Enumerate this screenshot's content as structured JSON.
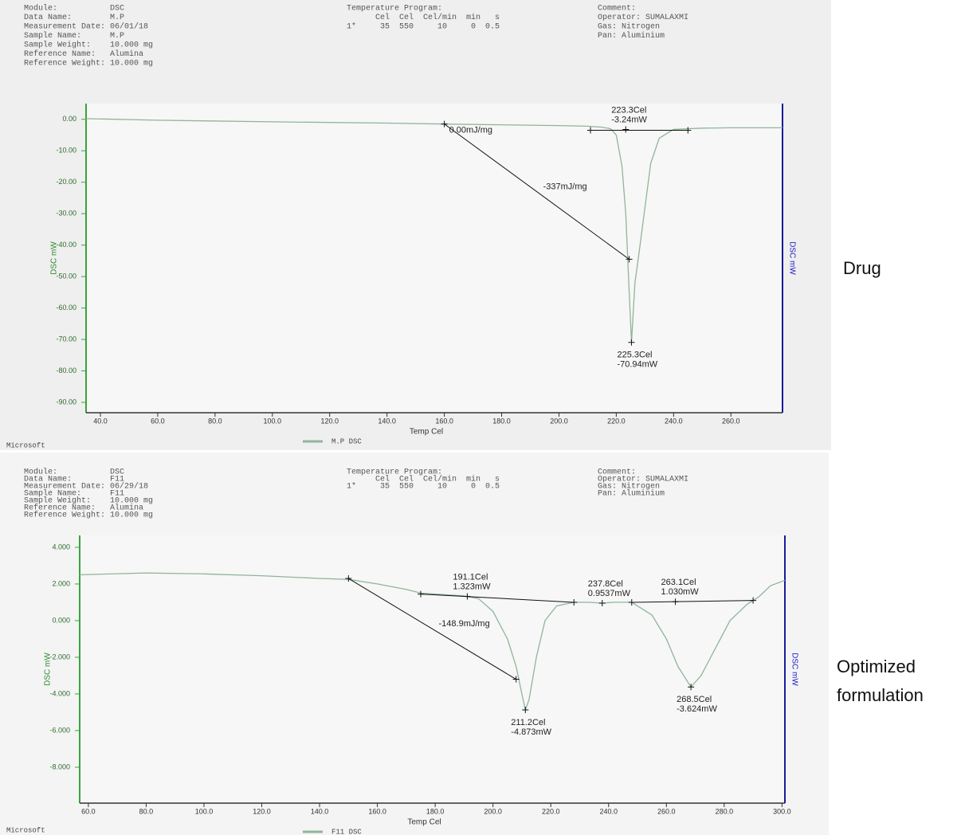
{
  "chart_data": [
    {
      "type": "line",
      "header_left": [
        "Module:           DSC",
        "Data Name:        M.P",
        "Measurement Date: 06/01/18",
        "Sample Name:      M.P",
        "Sample Weight:    10.000 mg",
        "Reference Name:   Alumina",
        "Reference Weight: 10.000 mg"
      ],
      "header_mid": [
        "Temperature Program:",
        "      Cel  Cel  Cel/min  min   s",
        "1*     35  550     10     0  0.5"
      ],
      "header_right": [
        "Comment:",
        "Operator: SUMALAXMI",
        "Gas: Nitrogen",
        "Pan: Aluminium"
      ],
      "ylabel": "DSC mW",
      "y2label": "DSC mW",
      "xlabel": "Temp Cel",
      "footer": "Microsoft",
      "side_label": [
        "Drug"
      ],
      "x": [
        35,
        60,
        100,
        140,
        160,
        200,
        210,
        215,
        218,
        220,
        222,
        223.3,
        224.5,
        225.3,
        226.5,
        228,
        230,
        232,
        235,
        240,
        250,
        260,
        278
      ],
      "series": [
        {
          "name": "M.P DSC",
          "color": "#8fb59a",
          "values": [
            0.2,
            -0.3,
            -0.8,
            -1.2,
            -1.5,
            -2.0,
            -2.2,
            -2.5,
            -3.0,
            -5,
            -15,
            -30,
            -55,
            -70.94,
            -52,
            -42,
            -28,
            -14,
            -6,
            -3.2,
            -2.8,
            -2.7,
            -2.7
          ]
        }
      ],
      "lines": [
        {
          "x": [
            211,
            245
          ],
          "values": [
            -3.5,
            -3.5
          ]
        },
        {
          "x": [
            160,
            224.5
          ],
          "values": [
            -1.5,
            -44.5
          ],
          "labels": [
            "0.00mJ/mg",
            "-337mJ/mg"
          ]
        }
      ],
      "points": [
        {
          "x": 223.3,
          "y": -3.24,
          "labels": [
            "223.3Cel",
            "-3.24mW"
          ]
        },
        {
          "x": 225.3,
          "y": -70.94,
          "labels": [
            "225.3Cel",
            "-70.94mW"
          ]
        }
      ],
      "xlim": [
        35,
        278
      ],
      "ylim": [
        5,
        -93.3
      ],
      "xticks": [
        {
          "value": 40,
          "label": "40.0"
        },
        {
          "value": 60,
          "label": "60.0"
        },
        {
          "value": 80,
          "label": "80.0"
        },
        {
          "value": 100,
          "label": "100.0"
        },
        {
          "value": 120,
          "label": "120.0"
        },
        {
          "value": 140,
          "label": "140.0"
        },
        {
          "value": 160,
          "label": "160.0"
        },
        {
          "value": 180,
          "label": "180.0"
        },
        {
          "value": 200,
          "label": "200.0"
        },
        {
          "value": 220,
          "label": "220.0"
        },
        {
          "value": 240,
          "label": "240.0"
        },
        {
          "value": 260,
          "label": "260.0"
        }
      ],
      "yticks": [
        {
          "value": 0,
          "label": "0.00"
        },
        {
          "value": -10,
          "label": "-10.00"
        },
        {
          "value": -20,
          "label": "-20.00"
        },
        {
          "value": -30,
          "label": "-30.00"
        },
        {
          "value": -40,
          "label": "-40.00"
        },
        {
          "value": -50,
          "label": "-50.00"
        },
        {
          "value": -60,
          "label": "-60.00"
        },
        {
          "value": -70,
          "label": "-70.00"
        },
        {
          "value": -80,
          "label": "-80.00"
        },
        {
          "value": -90,
          "label": "-90.00"
        }
      ]
    },
    {
      "type": "line",
      "header_left": [
        "Module:           DSC",
        "Data Name:        F11",
        "Measurement Date: 06/29/18",
        "Sample Name:      F11",
        "Sample Weight:    10.000 mg",
        "Reference Name:   Alumina",
        "Reference Weight: 10.000 mg"
      ],
      "header_mid": [
        "Temperature Program:",
        "      Cel  Cel  Cel/min  min   s",
        "1*     35  550     10     0  0.5"
      ],
      "header_right": [
        "Comment:",
        "Operator: SUMALAXMI",
        "Gas: Nitrogen",
        "Pan: Aluminium"
      ],
      "ylabel": "DSC mW",
      "y2label": "DSC mW",
      "xlabel": "Temp Cel",
      "footer": "Microsoft",
      "side_label": [
        "Optimized",
        "formulation"
      ],
      "x": [
        57,
        80,
        100,
        120,
        140,
        150,
        160,
        170,
        175,
        180,
        190,
        195,
        200,
        205,
        208,
        210,
        211.2,
        212.5,
        215,
        218,
        222,
        228,
        233,
        237.8,
        242,
        248,
        255,
        260,
        264,
        268.5,
        272,
        276,
        282,
        288,
        292,
        296,
        301
      ],
      "series": [
        {
          "name": "F11 DSC",
          "color": "#8fb59a",
          "values": [
            2.5,
            2.6,
            2.55,
            2.45,
            2.3,
            2.25,
            2.0,
            1.7,
            1.5,
            1.45,
            1.35,
            1.2,
            0.5,
            -1.0,
            -2.5,
            -4.0,
            -4.873,
            -4.3,
            -2.0,
            0.0,
            0.8,
            1.0,
            1.0,
            0.9537,
            1.0,
            1.0,
            0.3,
            -1.0,
            -2.5,
            -3.624,
            -3.0,
            -1.8,
            0.0,
            0.9,
            1.3,
            1.9,
            2.2
          ]
        }
      ],
      "lines": [
        {
          "x": [
            175,
            228
          ],
          "values": [
            1.45,
            1.0
          ]
        },
        {
          "x": [
            248,
            290
          ],
          "values": [
            1.0,
            1.1
          ]
        },
        {
          "x": [
            150,
            208
          ],
          "values": [
            2.3,
            -3.2
          ],
          "labels": [
            "",
            "-148.9mJ/mg"
          ]
        }
      ],
      "points": [
        {
          "x": 191.1,
          "y": 1.323,
          "labels": [
            "191.1Cel",
            "1.323mW"
          ]
        },
        {
          "x": 237.8,
          "y": 0.9537,
          "labels": [
            "237.8Cel",
            "0.9537mW"
          ]
        },
        {
          "x": 263.1,
          "y": 1.03,
          "labels": [
            "263.1Cel",
            "1.030mW"
          ]
        },
        {
          "x": 211.2,
          "y": -4.873,
          "labels": [
            "211.2Cel",
            "-4.873mW"
          ]
        },
        {
          "x": 268.5,
          "y": -3.624,
          "labels": [
            "268.5Cel",
            "-3.624mW"
          ]
        }
      ],
      "xlim": [
        57,
        301
      ],
      "ylim": [
        4.65,
        -9.96
      ],
      "xticks": [
        {
          "value": 60,
          "label": "60.0"
        },
        {
          "value": 80,
          "label": "80.0"
        },
        {
          "value": 100,
          "label": "100.0"
        },
        {
          "value": 120,
          "label": "120.0"
        },
        {
          "value": 140,
          "label": "140.0"
        },
        {
          "value": 160,
          "label": "160.0"
        },
        {
          "value": 180,
          "label": "180.0"
        },
        {
          "value": 200,
          "label": "200.0"
        },
        {
          "value": 220,
          "label": "220.0"
        },
        {
          "value": 240,
          "label": "240.0"
        },
        {
          "value": 260,
          "label": "260.0"
        },
        {
          "value": 280,
          "label": "280.0"
        },
        {
          "value": 300,
          "label": "300.0"
        }
      ],
      "yticks": [
        {
          "value": 4,
          "label": "4.000"
        },
        {
          "value": 2,
          "label": "2.000"
        },
        {
          "value": 0,
          "label": "0.000"
        },
        {
          "value": -2,
          "label": "-2.000"
        },
        {
          "value": -4,
          "label": "-4.000"
        },
        {
          "value": -6,
          "label": "-6.000"
        },
        {
          "value": -8,
          "label": "-8.000"
        }
      ]
    }
  ]
}
